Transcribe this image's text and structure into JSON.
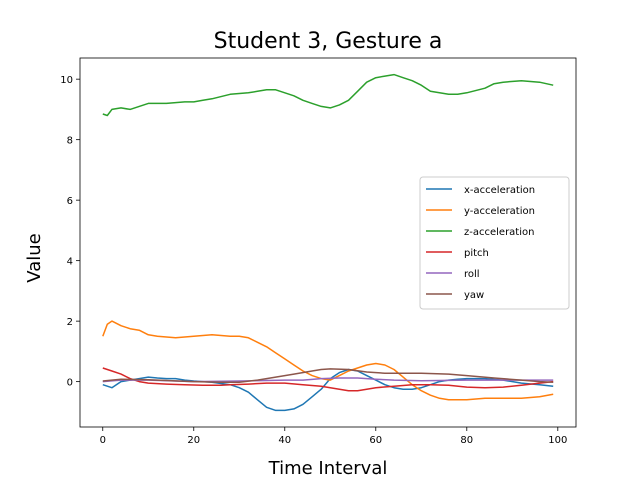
{
  "chart_data": {
    "type": "line",
    "title": "Student 3, Gesture a",
    "xlabel": "Time Interval",
    "ylabel": "Value",
    "xlim": [
      -5,
      104
    ],
    "ylim": [
      -1.5,
      10.7
    ],
    "xticks": [
      0,
      20,
      40,
      60,
      80,
      100
    ],
    "yticks": [
      0,
      2,
      4,
      6,
      8,
      10
    ],
    "grid": false,
    "legend_position": "center-right",
    "series": [
      {
        "name": "x-acceleration",
        "color": "#1f77b4",
        "points": [
          [
            0,
            -0.1
          ],
          [
            2,
            -0.2
          ],
          [
            4,
            0.0
          ],
          [
            6,
            0.05
          ],
          [
            8,
            0.1
          ],
          [
            10,
            0.15
          ],
          [
            12,
            0.12
          ],
          [
            14,
            0.1
          ],
          [
            16,
            0.1
          ],
          [
            18,
            0.05
          ],
          [
            20,
            0.02
          ],
          [
            24,
            -0.02
          ],
          [
            28,
            -0.1
          ],
          [
            30,
            -0.2
          ],
          [
            32,
            -0.35
          ],
          [
            34,
            -0.6
          ],
          [
            36,
            -0.85
          ],
          [
            38,
            -0.95
          ],
          [
            40,
            -0.95
          ],
          [
            42,
            -0.9
          ],
          [
            44,
            -0.75
          ],
          [
            46,
            -0.5
          ],
          [
            48,
            -0.25
          ],
          [
            50,
            0.1
          ],
          [
            52,
            0.3
          ],
          [
            54,
            0.4
          ],
          [
            56,
            0.35
          ],
          [
            58,
            0.2
          ],
          [
            60,
            0.05
          ],
          [
            62,
            -0.1
          ],
          [
            64,
            -0.2
          ],
          [
            66,
            -0.25
          ],
          [
            68,
            -0.25
          ],
          [
            70,
            -0.2
          ],
          [
            72,
            -0.1
          ],
          [
            74,
            0.0
          ],
          [
            76,
            0.05
          ],
          [
            78,
            0.08
          ],
          [
            80,
            0.1
          ],
          [
            84,
            0.1
          ],
          [
            88,
            0.05
          ],
          [
            92,
            -0.05
          ],
          [
            96,
            -0.1
          ],
          [
            99,
            -0.15
          ]
        ]
      },
      {
        "name": "y-acceleration",
        "color": "#ff7f0e",
        "points": [
          [
            0,
            1.5
          ],
          [
            1,
            1.9
          ],
          [
            2,
            2.0
          ],
          [
            4,
            1.85
          ],
          [
            6,
            1.75
          ],
          [
            8,
            1.7
          ],
          [
            10,
            1.55
          ],
          [
            12,
            1.5
          ],
          [
            16,
            1.45
          ],
          [
            20,
            1.5
          ],
          [
            24,
            1.55
          ],
          [
            28,
            1.5
          ],
          [
            30,
            1.5
          ],
          [
            32,
            1.45
          ],
          [
            34,
            1.3
          ],
          [
            36,
            1.15
          ],
          [
            38,
            0.95
          ],
          [
            40,
            0.75
          ],
          [
            42,
            0.55
          ],
          [
            44,
            0.35
          ],
          [
            46,
            0.2
          ],
          [
            48,
            0.1
          ],
          [
            50,
            0.05
          ],
          [
            52,
            0.2
          ],
          [
            54,
            0.35
          ],
          [
            56,
            0.45
          ],
          [
            58,
            0.55
          ],
          [
            60,
            0.6
          ],
          [
            62,
            0.55
          ],
          [
            64,
            0.4
          ],
          [
            66,
            0.15
          ],
          [
            68,
            -0.1
          ],
          [
            70,
            -0.3
          ],
          [
            72,
            -0.45
          ],
          [
            74,
            -0.55
          ],
          [
            76,
            -0.6
          ],
          [
            80,
            -0.6
          ],
          [
            84,
            -0.55
          ],
          [
            88,
            -0.55
          ],
          [
            92,
            -0.55
          ],
          [
            96,
            -0.5
          ],
          [
            99,
            -0.42
          ]
        ]
      },
      {
        "name": "z-acceleration",
        "color": "#2ca02c",
        "points": [
          [
            0,
            8.85
          ],
          [
            1,
            8.8
          ],
          [
            2,
            9.0
          ],
          [
            4,
            9.05
          ],
          [
            6,
            9.0
          ],
          [
            8,
            9.1
          ],
          [
            10,
            9.2
          ],
          [
            14,
            9.2
          ],
          [
            18,
            9.25
          ],
          [
            20,
            9.25
          ],
          [
            22,
            9.3
          ],
          [
            24,
            9.35
          ],
          [
            28,
            9.5
          ],
          [
            32,
            9.55
          ],
          [
            34,
            9.6
          ],
          [
            36,
            9.65
          ],
          [
            38,
            9.65
          ],
          [
            40,
            9.55
          ],
          [
            42,
            9.45
          ],
          [
            44,
            9.3
          ],
          [
            46,
            9.2
          ],
          [
            48,
            9.1
          ],
          [
            50,
            9.05
          ],
          [
            52,
            9.15
          ],
          [
            54,
            9.3
          ],
          [
            56,
            9.6
          ],
          [
            58,
            9.9
          ],
          [
            60,
            10.05
          ],
          [
            62,
            10.1
          ],
          [
            64,
            10.15
          ],
          [
            66,
            10.05
          ],
          [
            68,
            9.95
          ],
          [
            70,
            9.8
          ],
          [
            72,
            9.6
          ],
          [
            74,
            9.55
          ],
          [
            76,
            9.5
          ],
          [
            78,
            9.5
          ],
          [
            80,
            9.55
          ],
          [
            84,
            9.7
          ],
          [
            86,
            9.85
          ],
          [
            88,
            9.9
          ],
          [
            92,
            9.95
          ],
          [
            96,
            9.9
          ],
          [
            99,
            9.8
          ]
        ]
      },
      {
        "name": "pitch",
        "color": "#d62728",
        "points": [
          [
            0,
            0.45
          ],
          [
            2,
            0.35
          ],
          [
            4,
            0.25
          ],
          [
            6,
            0.1
          ],
          [
            8,
            0.0
          ],
          [
            10,
            -0.05
          ],
          [
            14,
            -0.08
          ],
          [
            18,
            -0.1
          ],
          [
            22,
            -0.12
          ],
          [
            26,
            -0.12
          ],
          [
            28,
            -0.1
          ],
          [
            32,
            -0.08
          ],
          [
            36,
            -0.05
          ],
          [
            40,
            -0.05
          ],
          [
            44,
            -0.1
          ],
          [
            48,
            -0.15
          ],
          [
            52,
            -0.25
          ],
          [
            54,
            -0.3
          ],
          [
            56,
            -0.3
          ],
          [
            58,
            -0.25
          ],
          [
            60,
            -0.2
          ],
          [
            64,
            -0.15
          ],
          [
            68,
            -0.1
          ],
          [
            72,
            -0.1
          ],
          [
            76,
            -0.12
          ],
          [
            80,
            -0.18
          ],
          [
            84,
            -0.2
          ],
          [
            88,
            -0.18
          ],
          [
            92,
            -0.12
          ],
          [
            96,
            -0.05
          ],
          [
            99,
            0.0
          ]
        ]
      },
      {
        "name": "roll",
        "color": "#9467bd",
        "points": [
          [
            0,
            0.0
          ],
          [
            4,
            0.05
          ],
          [
            10,
            0.05
          ],
          [
            20,
            0.0
          ],
          [
            30,
            0.02
          ],
          [
            40,
            0.05
          ],
          [
            44,
            0.05
          ],
          [
            48,
            0.1
          ],
          [
            52,
            0.12
          ],
          [
            56,
            0.12
          ],
          [
            60,
            0.08
          ],
          [
            64,
            0.05
          ],
          [
            70,
            0.03
          ],
          [
            80,
            0.05
          ],
          [
            90,
            0.05
          ],
          [
            99,
            0.05
          ]
        ]
      },
      {
        "name": "yaw",
        "color": "#8c564b",
        "points": [
          [
            0,
            0.02
          ],
          [
            4,
            0.08
          ],
          [
            10,
            0.06
          ],
          [
            20,
            0.0
          ],
          [
            26,
            -0.02
          ],
          [
            30,
            -0.02
          ],
          [
            34,
            0.05
          ],
          [
            38,
            0.15
          ],
          [
            42,
            0.25
          ],
          [
            46,
            0.35
          ],
          [
            48,
            0.4
          ],
          [
            50,
            0.42
          ],
          [
            54,
            0.4
          ],
          [
            58,
            0.32
          ],
          [
            62,
            0.28
          ],
          [
            66,
            0.28
          ],
          [
            70,
            0.28
          ],
          [
            76,
            0.25
          ],
          [
            80,
            0.2
          ],
          [
            86,
            0.12
          ],
          [
            92,
            0.05
          ],
          [
            96,
            0.0
          ],
          [
            99,
            -0.02
          ]
        ]
      }
    ]
  }
}
